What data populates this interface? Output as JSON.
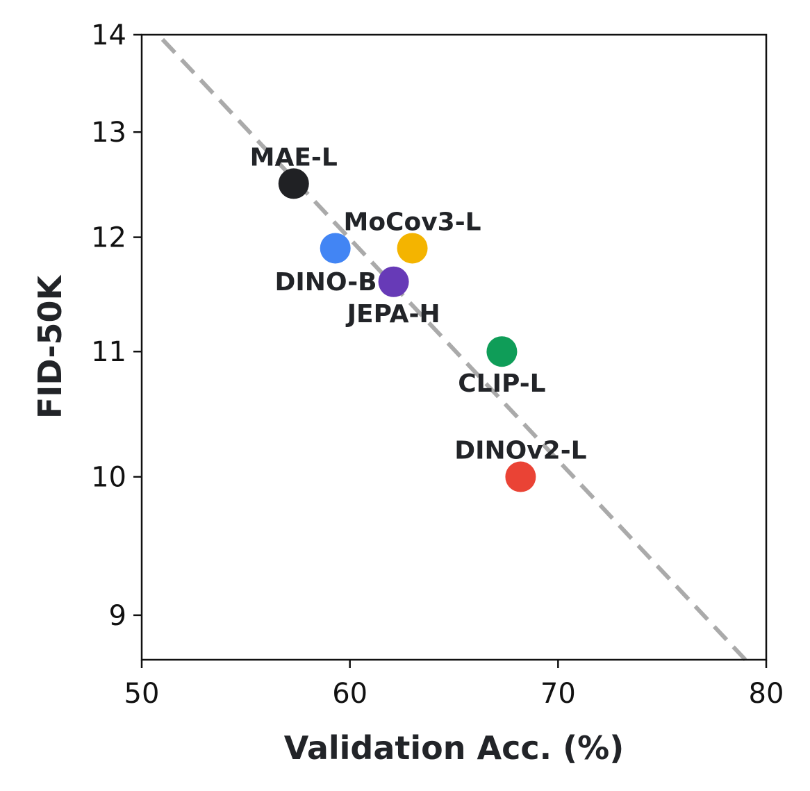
{
  "chart_data": {
    "type": "scatter",
    "title": "",
    "xlabel": "Validation Acc. (%)",
    "ylabel": "FID-50K",
    "xlim": [
      50,
      80
    ],
    "ylim": [
      8.7,
      14
    ],
    "y_scale": "log",
    "xticks": [
      50,
      60,
      70,
      80
    ],
    "yticks": [
      9,
      10,
      11,
      12,
      13,
      14
    ],
    "grid": false,
    "legend": "none",
    "points": [
      {
        "label": "MAE-L",
        "x": 57.3,
        "y": 12.5,
        "color": "#202124",
        "label_position": "above"
      },
      {
        "label": "MoCov3-L",
        "x": 63.0,
        "y": 11.9,
        "color": "#f4b400",
        "label_position": "above"
      },
      {
        "label": "DINO-B",
        "x": 59.3,
        "y": 11.9,
        "color": "#4285f4",
        "label_position": "none"
      },
      {
        "label": "DINO-B",
        "x": 62.1,
        "y": 11.6,
        "color": "#673ab7",
        "label_position": "left"
      },
      {
        "label": "JEPA-H",
        "x": 62.1,
        "y": 11.6,
        "color": "#673ab7",
        "label_position": "below",
        "text_only": true
      },
      {
        "label": "CLIP-L",
        "x": 67.3,
        "y": 11.0,
        "color": "#0f9d58",
        "label_position": "below"
      },
      {
        "label": "DINOv2-L",
        "x": 68.2,
        "y": 10.0,
        "color": "#ea4335",
        "label_position": "above"
      }
    ],
    "trend_line": {
      "style": "dashed",
      "color": "#aaaaaa",
      "x": [
        51,
        79
      ],
      "y": [
        13.95,
        8.7
      ]
    }
  }
}
